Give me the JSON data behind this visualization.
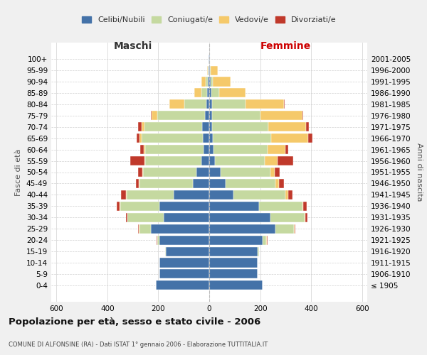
{
  "age_groups": [
    "100+",
    "95-99",
    "90-94",
    "85-89",
    "80-84",
    "75-79",
    "70-74",
    "65-69",
    "60-64",
    "55-59",
    "50-54",
    "45-49",
    "40-44",
    "35-39",
    "30-34",
    "25-29",
    "20-24",
    "15-19",
    "10-14",
    "5-9",
    "0-4"
  ],
  "birth_years": [
    "≤ 1905",
    "1906-1910",
    "1911-1915",
    "1916-1920",
    "1921-1925",
    "1926-1930",
    "1931-1935",
    "1936-1940",
    "1941-1945",
    "1946-1950",
    "1951-1955",
    "1956-1960",
    "1961-1965",
    "1966-1970",
    "1971-1975",
    "1976-1980",
    "1981-1985",
    "1986-1990",
    "1991-1995",
    "1996-2000",
    "2001-2005"
  ],
  "colors": {
    "celibi": "#4472a8",
    "coniugati": "#c5d9a0",
    "vedovi": "#f5c96a",
    "divorziati": "#c0392b"
  },
  "maschi": {
    "celibi": [
      2,
      3,
      5,
      8,
      12,
      18,
      28,
      25,
      22,
      32,
      50,
      65,
      140,
      195,
      180,
      230,
      195,
      170,
      195,
      195,
      210
    ],
    "coniugati": [
      0,
      2,
      8,
      22,
      85,
      185,
      225,
      240,
      230,
      220,
      210,
      210,
      185,
      155,
      140,
      45,
      8,
      2,
      0,
      0,
      0
    ],
    "vedovi": [
      0,
      3,
      18,
      30,
      60,
      22,
      12,
      10,
      5,
      3,
      2,
      2,
      2,
      2,
      2,
      2,
      2,
      0,
      0,
      0,
      0
    ],
    "divorziati": [
      0,
      0,
      0,
      0,
      0,
      5,
      15,
      10,
      15,
      55,
      18,
      12,
      18,
      10,
      5,
      2,
      1,
      0,
      0,
      0,
      0
    ]
  },
  "femmine": {
    "celibi": [
      2,
      3,
      5,
      8,
      12,
      12,
      12,
      14,
      18,
      22,
      45,
      65,
      95,
      195,
      240,
      260,
      210,
      190,
      190,
      190,
      210
    ],
    "coniugati": [
      0,
      3,
      10,
      30,
      130,
      188,
      220,
      228,
      210,
      195,
      195,
      195,
      205,
      170,
      135,
      72,
      14,
      5,
      0,
      0,
      0
    ],
    "vedovi": [
      2,
      28,
      70,
      105,
      150,
      165,
      148,
      145,
      70,
      50,
      18,
      14,
      10,
      5,
      3,
      2,
      2,
      0,
      0,
      0,
      0
    ],
    "divorziati": [
      0,
      0,
      0,
      0,
      3,
      5,
      10,
      18,
      12,
      62,
      18,
      18,
      16,
      12,
      8,
      3,
      2,
      0,
      0,
      0,
      0
    ]
  },
  "title": "Popolazione per età, sesso e stato civile - 2006",
  "subtitle": "COMUNE DI ALFONSINE (RA) - Dati ISTAT 1° gennaio 2006 - Elaborazione TUTTITALIA.IT",
  "xlabel_maschi": "Maschi",
  "xlabel_femmine": "Femmine",
  "ylabel_left": "Fasce di età",
  "ylabel_right": "Anni di nascita",
  "xlim": 620,
  "legend_labels": [
    "Celibi/Nubili",
    "Coniugati/e",
    "Vedovi/e",
    "Divorziati/e"
  ],
  "bg_color": "#f0f0f0",
  "plot_bg": "#ffffff"
}
